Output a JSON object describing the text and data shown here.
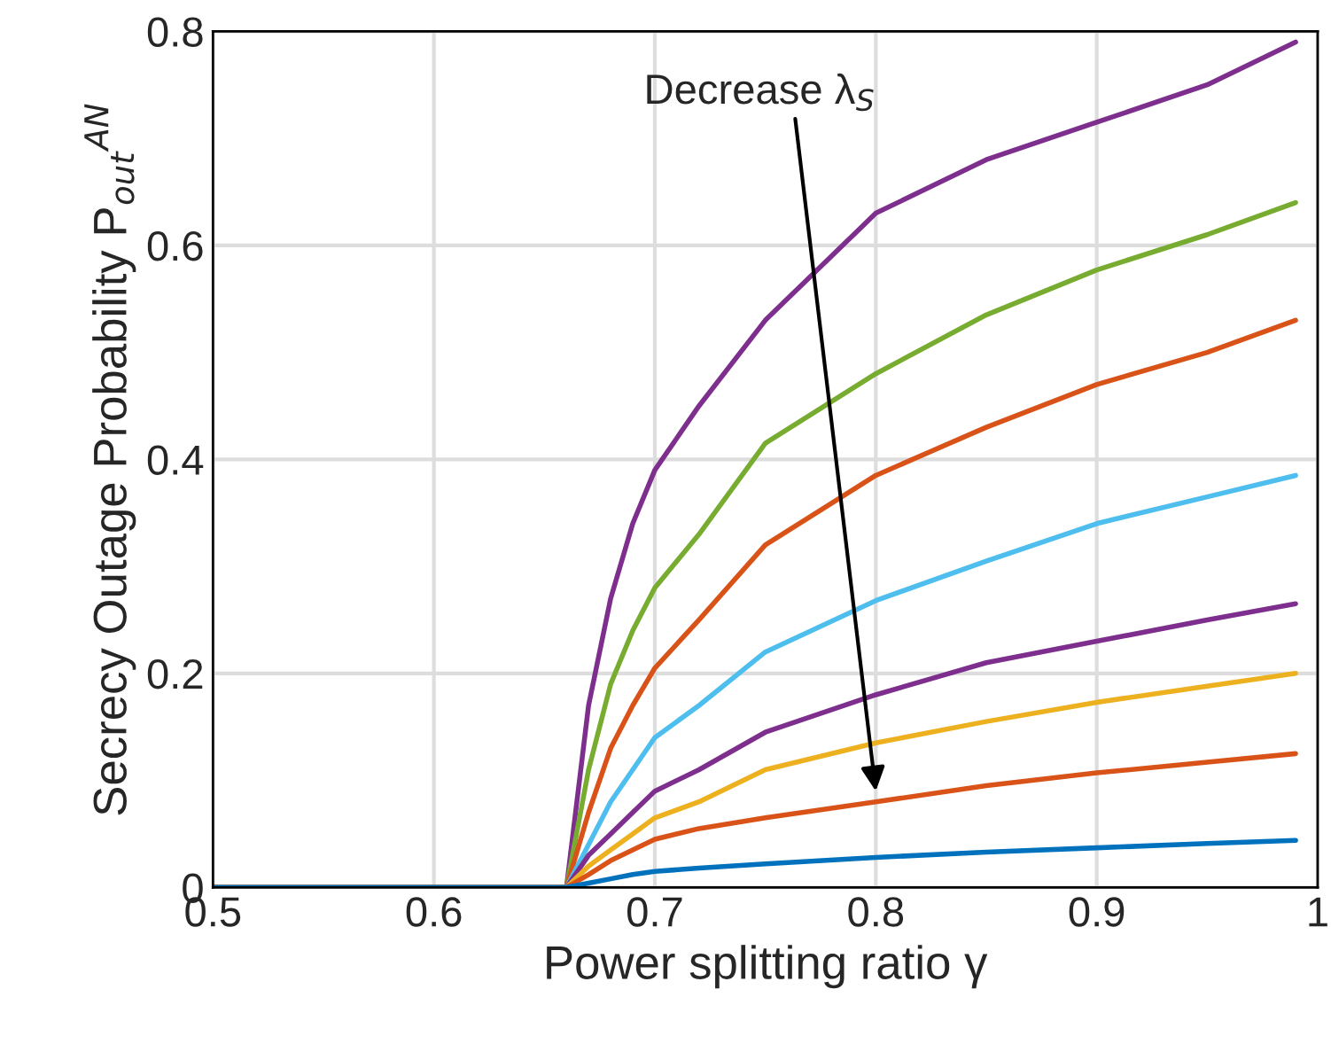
{
  "chart_data": {
    "type": "line",
    "xlabel": "Power splitting ratio γ",
    "ylabel": "Secrecy Outage Probability P$_{out}$$^{AN}$",
    "x": [
      0.5,
      0.66,
      0.67,
      0.68,
      0.69,
      0.7,
      0.72,
      0.75,
      0.8,
      0.85,
      0.9,
      0.95,
      0.99
    ],
    "series": [
      {
        "color": "#7e2f8e",
        "values": [
          0,
          0,
          0.17,
          0.27,
          0.34,
          0.39,
          0.45,
          0.53,
          0.63,
          0.68,
          0.715,
          0.75,
          0.79
        ]
      },
      {
        "color": "#77ac30",
        "values": [
          0,
          0,
          0.11,
          0.19,
          0.24,
          0.28,
          0.33,
          0.415,
          0.48,
          0.535,
          0.577,
          0.61,
          0.64
        ]
      },
      {
        "color": "#d95319",
        "values": [
          0,
          0,
          0.07,
          0.13,
          0.17,
          0.205,
          0.25,
          0.32,
          0.385,
          0.43,
          0.47,
          0.5,
          0.53
        ]
      },
      {
        "color": "#4dbeee",
        "values": [
          0,
          0,
          0.04,
          0.08,
          0.11,
          0.14,
          0.17,
          0.22,
          0.268,
          0.305,
          0.34,
          0.365,
          0.385
        ]
      },
      {
        "color": "#7e2f8e",
        "values": [
          0,
          0,
          0.03,
          0.05,
          0.07,
          0.09,
          0.11,
          0.145,
          0.18,
          0.21,
          0.23,
          0.25,
          0.265
        ]
      },
      {
        "color": "#edb120",
        "values": [
          0,
          0,
          0.02,
          0.035,
          0.05,
          0.065,
          0.08,
          0.11,
          0.135,
          0.155,
          0.173,
          0.188,
          0.2
        ]
      },
      {
        "color": "#d95319",
        "values": [
          0,
          0,
          0.012,
          0.025,
          0.035,
          0.045,
          0.055,
          0.065,
          0.08,
          0.095,
          0.107,
          0.117,
          0.125
        ]
      },
      {
        "color": "#0072bd",
        "values": [
          0,
          0,
          0.004,
          0.008,
          0.012,
          0.015,
          0.018,
          0.022,
          0.028,
          0.033,
          0.037,
          0.041,
          0.044
        ]
      }
    ],
    "annotations": [
      {
        "text": "Decrease λ$_{S}$",
        "x": 0.8,
        "y": 0.09
      }
    ],
    "xlim": [
      0.5,
      1
    ],
    "ylim": [
      0,
      0.8
    ],
    "xticks": [
      0.5,
      0.6,
      0.7,
      0.8,
      0.9,
      1
    ],
    "yticks": [
      0,
      0.2,
      0.4,
      0.6,
      0.8
    ],
    "grid": true,
    "legend": false,
    "marker": "none",
    "line_style": "solid"
  }
}
